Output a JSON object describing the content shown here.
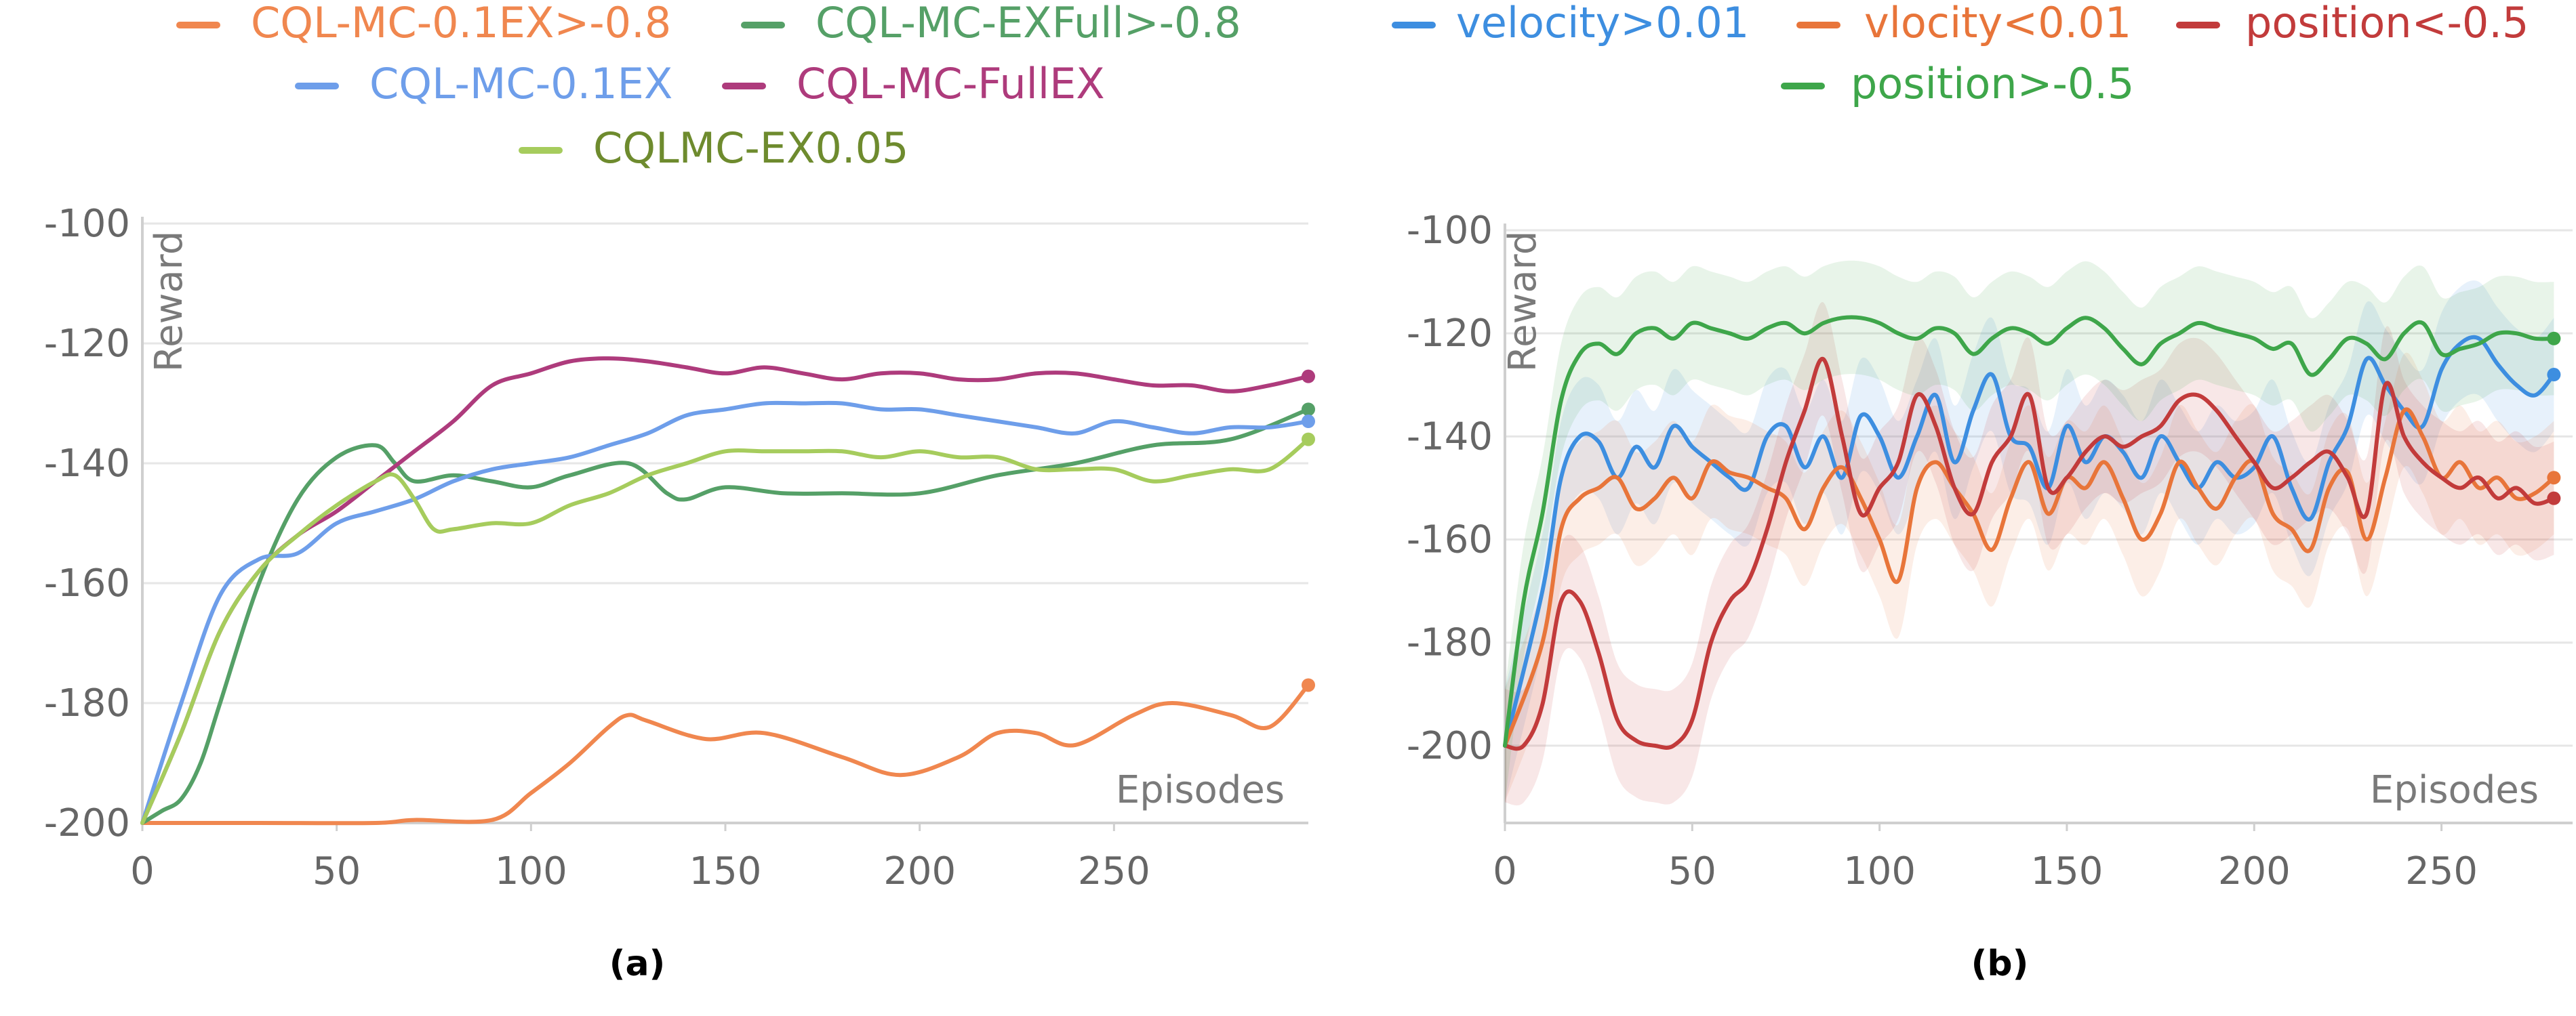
{
  "chart_data": [
    {
      "type": "line",
      "caption": "(a)",
      "ylabel": "Reward",
      "xlabel": "Episodes",
      "xlim": [
        0,
        300
      ],
      "ylim": [
        -200,
        -100
      ],
      "xticks": [
        0,
        50,
        100,
        150,
        200,
        250
      ],
      "yticks": [
        -200,
        -180,
        -160,
        -140,
        -120,
        -100
      ],
      "grid": "horizontal",
      "legend_position": "top",
      "series": [
        {
          "name": "CQL-MC-0.1EX>-0.8",
          "color": "#F0874F",
          "x": [
            0,
            30,
            60,
            70,
            90,
            100,
            110,
            120,
            125,
            130,
            145,
            160,
            180,
            195,
            210,
            220,
            230,
            240,
            255,
            265,
            280,
            290,
            300
          ],
          "y": [
            -200,
            -200,
            -200,
            -199.5,
            -199.5,
            -195,
            -190,
            -184,
            -182,
            -183,
            -186,
            -185,
            -189,
            -192,
            -189,
            -185,
            -185,
            -187,
            -182,
            -180,
            -182,
            -184,
            -177
          ]
        },
        {
          "name": "CQL-MC-EXFull>-0.8",
          "color": "#55A067",
          "x": [
            0,
            5,
            10,
            15,
            20,
            30,
            40,
            50,
            60,
            65,
            70,
            80,
            90,
            100,
            110,
            125,
            135,
            140,
            150,
            165,
            180,
            200,
            220,
            240,
            260,
            280,
            300
          ],
          "y": [
            -200,
            -198,
            -196,
            -190,
            -180,
            -160,
            -146,
            -139,
            -137,
            -140,
            -143,
            -142,
            -143,
            -144,
            -142,
            -140,
            -145,
            -146,
            -144,
            -145,
            -145,
            -145,
            -142,
            -140,
            -137,
            -136,
            -131
          ]
        },
        {
          "name": "CQL-MC-0.1EX",
          "color": "#6E9EEA",
          "x": [
            0,
            10,
            20,
            30,
            40,
            50,
            60,
            70,
            80,
            90,
            100,
            110,
            120,
            130,
            140,
            150,
            160,
            170,
            180,
            190,
            200,
            210,
            220,
            230,
            240,
            250,
            260,
            270,
            280,
            290,
            300
          ],
          "y": [
            -200,
            -180,
            -162,
            -156,
            -155,
            -150,
            -148,
            -146,
            -143,
            -141,
            -140,
            -139,
            -137,
            -135,
            -132,
            -131,
            -130,
            -130,
            -130,
            -131,
            -131,
            -132,
            -133,
            -134,
            -135,
            -133,
            -134,
            -135,
            -134,
            -134,
            -133
          ]
        },
        {
          "name": "CQL-MC-FullEX",
          "color": "#AE3B7C",
          "x": [
            0,
            10,
            20,
            30,
            40,
            50,
            60,
            70,
            80,
            90,
            100,
            110,
            120,
            130,
            140,
            150,
            160,
            170,
            180,
            190,
            200,
            210,
            220,
            230,
            240,
            250,
            260,
            270,
            280,
            290,
            300
          ],
          "y": [
            -200,
            -185,
            -168,
            -158,
            -152,
            -148,
            -143,
            -138,
            -133,
            -127,
            -125,
            -123,
            -122.5,
            -123,
            -124,
            -125,
            -124,
            -125,
            -126,
            -125,
            -125,
            -126,
            -126,
            -125,
            -125,
            -126,
            -127,
            -127,
            -128,
            -127,
            -125.5
          ]
        },
        {
          "name": "CQLMC-EX0.05",
          "color": "#A6CC5D",
          "x": [
            0,
            10,
            20,
            30,
            40,
            50,
            60,
            65,
            70,
            75,
            80,
            90,
            100,
            110,
            120,
            130,
            140,
            150,
            160,
            170,
            180,
            190,
            200,
            210,
            220,
            230,
            240,
            250,
            260,
            270,
            280,
            290,
            300
          ],
          "y": [
            -200,
            -185,
            -168,
            -158,
            -152,
            -147,
            -143,
            -142,
            -146,
            -151,
            -151,
            -150,
            -150,
            -147,
            -145,
            -142,
            -140,
            -138,
            -138,
            -138,
            -138,
            -139,
            -138,
            -139,
            -139,
            -141,
            -141,
            -141,
            -143,
            -142,
            -141,
            -141,
            -136
          ]
        }
      ]
    },
    {
      "type": "line",
      "caption": "(b)",
      "ylabel": "Reward",
      "xlabel": "Episodes",
      "xlim": [
        0,
        285
      ],
      "ylim": [
        -215,
        -100
      ],
      "xticks": [
        0,
        50,
        100,
        150,
        200,
        250
      ],
      "yticks": [
        -200,
        -180,
        -160,
        -140,
        -120,
        -100
      ],
      "grid": "horizontal",
      "legend_position": "top",
      "series": [
        {
          "name": "velocity>0.01",
          "color": "#3D8EE0",
          "x": [
            0,
            10,
            15,
            20,
            25,
            30,
            35,
            40,
            45,
            50,
            55,
            60,
            65,
            70,
            75,
            80,
            85,
            90,
            95,
            100,
            105,
            110,
            115,
            120,
            125,
            130,
            135,
            140,
            145,
            150,
            155,
            160,
            165,
            170,
            175,
            180,
            185,
            190,
            195,
            200,
            205,
            210,
            215,
            220,
            225,
            230,
            235,
            240,
            245,
            250,
            255,
            260,
            265,
            270,
            275,
            280
          ],
          "y": [
            -200,
            -170,
            -148,
            -140,
            -141,
            -148,
            -142,
            -146,
            -138,
            -142,
            -145,
            -148,
            -150,
            -140,
            -138,
            -146,
            -140,
            -148,
            -136,
            -140,
            -148,
            -140,
            -132,
            -145,
            -135,
            -128,
            -140,
            -142,
            -150,
            -138,
            -145,
            -140,
            -143,
            -148,
            -140,
            -145,
            -150,
            -145,
            -148,
            -146,
            -140,
            -150,
            -156,
            -145,
            -138,
            -125,
            -130,
            -135,
            -138,
            -127,
            -122,
            -121,
            -126,
            -130,
            -132,
            -128
          ]
        },
        {
          "name": "vlocity<0.01",
          "color": "#E8753A",
          "x": [
            0,
            10,
            15,
            20,
            25,
            30,
            35,
            40,
            45,
            50,
            55,
            60,
            65,
            70,
            75,
            80,
            85,
            90,
            95,
            100,
            105,
            110,
            115,
            120,
            125,
            130,
            135,
            140,
            145,
            150,
            155,
            160,
            165,
            170,
            175,
            180,
            185,
            190,
            195,
            200,
            205,
            210,
            215,
            220,
            225,
            230,
            235,
            240,
            245,
            250,
            255,
            260,
            265,
            270,
            275,
            280
          ],
          "y": [
            -200,
            -180,
            -158,
            -152,
            -150,
            -148,
            -154,
            -152,
            -148,
            -152,
            -145,
            -147,
            -148,
            -150,
            -152,
            -158,
            -150,
            -146,
            -152,
            -160,
            -168,
            -150,
            -145,
            -150,
            -155,
            -162,
            -152,
            -145,
            -155,
            -148,
            -150,
            -145,
            -152,
            -160,
            -155,
            -145,
            -150,
            -154,
            -148,
            -145,
            -155,
            -158,
            -162,
            -150,
            -147,
            -160,
            -148,
            -135,
            -140,
            -148,
            -145,
            -150,
            -148,
            -152,
            -151,
            -148
          ]
        },
        {
          "name": "position<-0.5",
          "color": "#C23B3B",
          "x": [
            0,
            5,
            10,
            15,
            20,
            25,
            30,
            35,
            40,
            45,
            50,
            55,
            60,
            65,
            70,
            75,
            80,
            85,
            90,
            95,
            100,
            105,
            110,
            115,
            120,
            125,
            130,
            135,
            140,
            145,
            150,
            155,
            160,
            165,
            170,
            175,
            180,
            185,
            190,
            195,
            200,
            205,
            210,
            215,
            220,
            225,
            230,
            235,
            240,
            245,
            250,
            255,
            260,
            265,
            270,
            275,
            280
          ],
          "y": [
            -200,
            -200,
            -192,
            -172,
            -172,
            -182,
            -195,
            -199,
            -200,
            -200,
            -195,
            -180,
            -172,
            -168,
            -158,
            -145,
            -135,
            -125,
            -140,
            -155,
            -150,
            -145,
            -132,
            -138,
            -150,
            -155,
            -145,
            -140,
            -132,
            -150,
            -148,
            -143,
            -140,
            -142,
            -140,
            -138,
            -133,
            -132,
            -135,
            -140,
            -145,
            -150,
            -148,
            -145,
            -143,
            -148,
            -155,
            -130,
            -140,
            -145,
            -148,
            -150,
            -148,
            -152,
            -150,
            -153,
            -152
          ]
        },
        {
          "name": "position>-0.5",
          "color": "#3EA64A",
          "x": [
            0,
            5,
            10,
            15,
            20,
            25,
            30,
            35,
            40,
            45,
            50,
            55,
            60,
            65,
            70,
            75,
            80,
            85,
            90,
            95,
            100,
            105,
            110,
            115,
            120,
            125,
            130,
            135,
            140,
            145,
            150,
            155,
            160,
            165,
            170,
            175,
            180,
            185,
            190,
            195,
            200,
            205,
            210,
            215,
            220,
            225,
            230,
            235,
            240,
            245,
            250,
            255,
            260,
            265,
            270,
            275,
            280
          ],
          "y": [
            -200,
            -172,
            -155,
            -133,
            -124,
            -122,
            -124,
            -120,
            -119,
            -121,
            -118,
            -119,
            -120,
            -121,
            -119,
            -118,
            -120,
            -118,
            -117,
            -117,
            -118,
            -120,
            -121,
            -119,
            -120,
            -124,
            -121,
            -119,
            -120,
            -122,
            -119,
            -117,
            -119,
            -123,
            -126,
            -122,
            -120,
            -118,
            -119,
            -120,
            -121,
            -123,
            -122,
            -128,
            -125,
            -121,
            -122,
            -125,
            -120,
            -118,
            -124,
            -123,
            -122,
            -120,
            -120,
            -121,
            -121
          ]
        }
      ]
    }
  ]
}
